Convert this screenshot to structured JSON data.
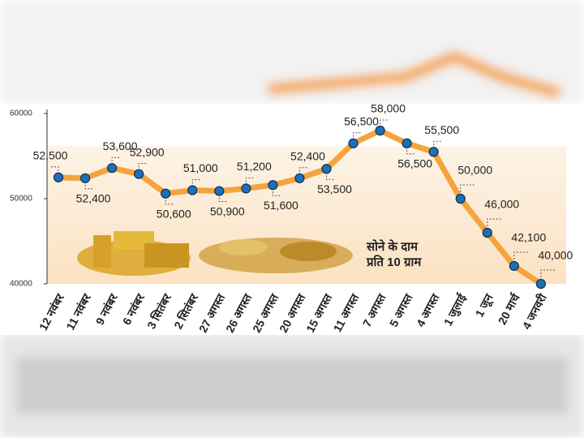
{
  "chart_data": {
    "type": "line",
    "annotation": [
      "सोने के दाम",
      "प्रति 10 ग्राम"
    ],
    "categories": [
      "12 नवंबर",
      "11 नवंबर",
      "9 नवंबर",
      "6 नवंबर",
      "3 सितंबर",
      "2 सितंबर",
      "27 अगस्त",
      "26 अगस्त",
      "25 अगस्त",
      "20 अगस्त",
      "15 अगस्त",
      "11 अगस्त",
      "7 अगस्त",
      "5 अगस्त",
      "4 अगस्त",
      "1 जुलाई",
      "1 जून",
      "20 मार्च",
      "4 जनवरी"
    ],
    "values": [
      52500,
      52400,
      53600,
      52900,
      50600,
      51000,
      50900,
      51200,
      51600,
      52400,
      53500,
      56500,
      58000,
      56500,
      55500,
      50000,
      46000,
      42100,
      40000
    ],
    "value_labels": [
      "52,500",
      "52,400",
      "53,600",
      "52,900",
      "50,600",
      "51,000",
      "50,900",
      "51,200",
      "51,600",
      "52,400",
      "53,500",
      "56,500",
      "58,000",
      "56,500",
      "55,500",
      "50,000",
      "46,000",
      "42,100",
      "40,000"
    ],
    "color": "#f4a43c",
    "marker_color": "#1f6fb5",
    "ylim": [
      40000,
      60000
    ],
    "yticks": [
      40000,
      50000,
      60000
    ]
  }
}
